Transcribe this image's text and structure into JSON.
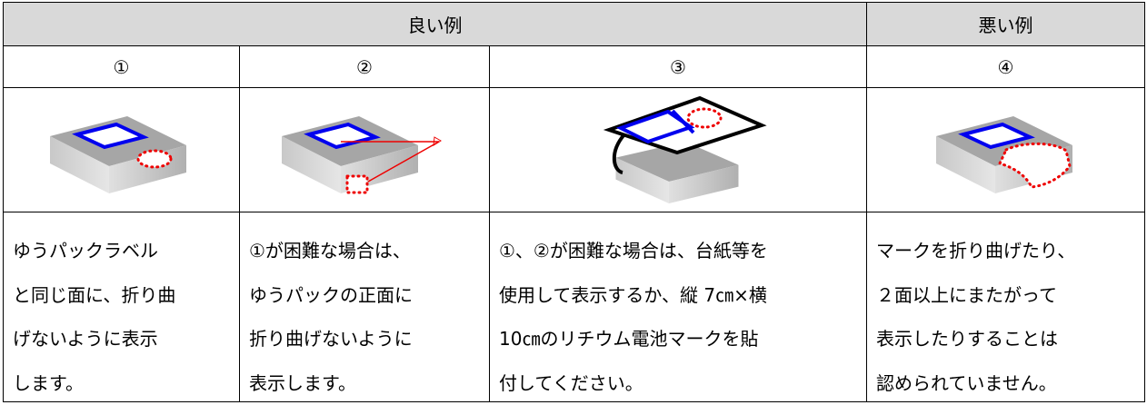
{
  "table": {
    "header": [
      "良い例",
      "悪い例"
    ],
    "numbers": [
      "①",
      "②",
      "③",
      "④"
    ],
    "descriptions": [
      [
        "ゆうパックラベル",
        "と同じ面に、折り曲",
        "げないように表示",
        "します。"
      ],
      [
        "①が困難な場合は、",
        "ゆうパックの正面に",
        "折り曲げないように",
        "表示します。"
      ],
      [
        "①、②が困難な場合は、台紙等を",
        "使用して表示するか、縦 7㎝×横",
        "10㎝のリチウム電池マークを貼",
        "付してください。"
      ],
      [
        "マークを折り曲げたり、",
        "２面以上にまたがって",
        "表示したりすることは",
        "認められていません。"
      ]
    ]
  }
}
